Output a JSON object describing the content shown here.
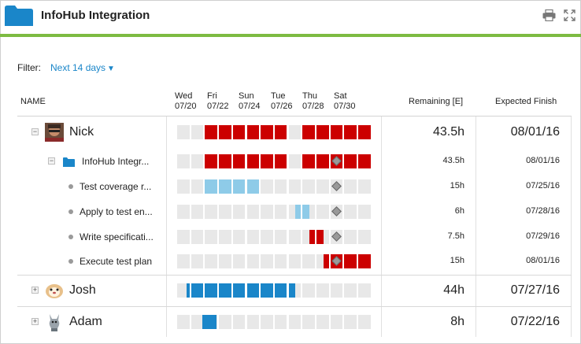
{
  "header": {
    "title": "InfoHub Integration"
  },
  "filter": {
    "label": "Filter:",
    "value": "Next 14 days"
  },
  "columns": {
    "name": "NAME",
    "remaining": "Remaining [E]",
    "expected": "Expected Finish",
    "dates": [
      {
        "day": "Wed",
        "date": "07/20"
      },
      {
        "day": "Fri",
        "date": "07/22"
      },
      {
        "day": "Sun",
        "date": "07/24"
      },
      {
        "day": "Tue",
        "date": "07/26"
      },
      {
        "day": "Thu",
        "date": "07/28"
      },
      {
        "day": "Sat",
        "date": "07/30"
      }
    ]
  },
  "colors": {
    "brand_green": "#7dbb42",
    "late_red": "#cc0000",
    "light_blue": "#8ecbe8",
    "blue": "#1a86c9",
    "cell_gray": "#e8e8e8"
  },
  "rows": [
    {
      "name": "Nick",
      "remaining": "43.5h",
      "expected": "08/01/16",
      "type": "person",
      "expanded": true,
      "bars": [
        {
          "from": 2,
          "to": 8,
          "color": "#cc0000"
        },
        {
          "from": 9,
          "to": 14,
          "color": "#cc0000"
        }
      ],
      "diamond": null
    },
    {
      "name": "InfoHub Integr...",
      "remaining": "43.5h",
      "expected": "08/01/16",
      "type": "project",
      "expanded": true,
      "bars": [
        {
          "from": 2,
          "to": 8,
          "color": "#cc0000"
        },
        {
          "from": 9,
          "to": 14,
          "color": "#cc0000"
        }
      ],
      "diamond": 11
    },
    {
      "name": "Test coverage r...",
      "remaining": "15h",
      "expected": "07/25/16",
      "type": "task",
      "bars": [
        {
          "from": 2,
          "to": 6,
          "color": "#8ecbe8"
        }
      ],
      "diamond": 11
    },
    {
      "name": "Apply to test en...",
      "remaining": "6h",
      "expected": "07/28/16",
      "type": "task",
      "bars": [
        {
          "from": 8.5,
          "to": 9.5,
          "color": "#8ecbe8"
        }
      ],
      "diamond": 11
    },
    {
      "name": "Write specificati...",
      "remaining": "7.5h",
      "expected": "07/29/16",
      "type": "task",
      "bars": [
        {
          "from": 9.5,
          "to": 10.5,
          "color": "#cc0000"
        }
      ],
      "diamond": 11
    },
    {
      "name": "Execute test plan",
      "remaining": "15h",
      "expected": "08/01/16",
      "type": "task",
      "bars": [
        {
          "from": 10.5,
          "to": 14,
          "color": "#cc0000"
        }
      ],
      "diamond": 11
    },
    {
      "name": "Josh",
      "remaining": "44h",
      "expected": "07/27/16",
      "type": "person",
      "expanded": false,
      "bars": [
        {
          "from": 0.7,
          "to": 8.5,
          "color": "#1a86c9"
        }
      ],
      "diamond": null
    },
    {
      "name": "Adam",
      "remaining": "8h",
      "expected": "07/22/16",
      "type": "person",
      "expanded": false,
      "bars": [
        {
          "from": 1.8,
          "to": 2.8,
          "color": "#1a86c9"
        }
      ],
      "diamond": null
    }
  ]
}
